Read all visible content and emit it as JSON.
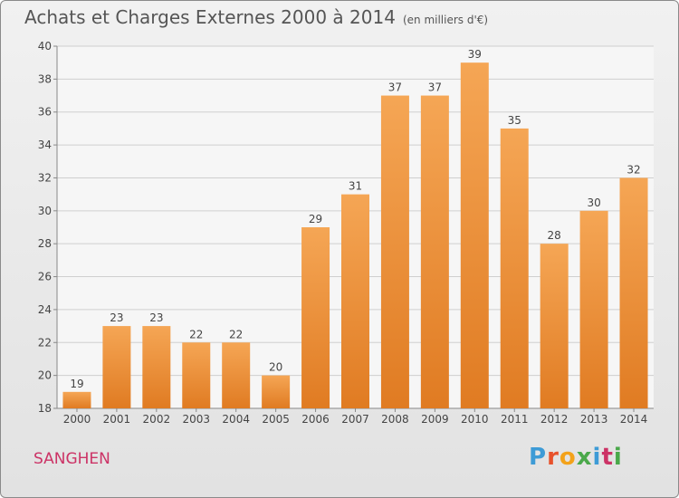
{
  "title": "Achats et Charges Externes 2000 à 2014",
  "unit_note": "(en milliers d'€)",
  "commune": "SANGHEN",
  "logo": [
    "P",
    "r",
    "o",
    "x",
    "i",
    "t",
    "i"
  ],
  "colors": {
    "bar_top": "#f5a655",
    "bar_bottom": "#e07b22",
    "grid": "#cfcfcf",
    "text": "#444444",
    "commune": "#cc3366"
  },
  "chart_data": {
    "type": "bar",
    "categories": [
      "2000",
      "2001",
      "2002",
      "2003",
      "2004",
      "2005",
      "2006",
      "2007",
      "2008",
      "2009",
      "2010",
      "2011",
      "2012",
      "2013",
      "2014"
    ],
    "values": [
      19,
      23,
      23,
      22,
      22,
      20,
      29,
      31,
      37,
      37,
      39,
      35,
      28,
      30,
      32
    ],
    "title": "Achats et Charges Externes 2000 à 2014",
    "xlabel": "",
    "ylabel": "",
    "ylim": [
      18,
      40
    ],
    "yticks": [
      18,
      20,
      22,
      24,
      26,
      28,
      30,
      32,
      34,
      36,
      38,
      40
    ],
    "grid": true,
    "data_labels": true
  }
}
